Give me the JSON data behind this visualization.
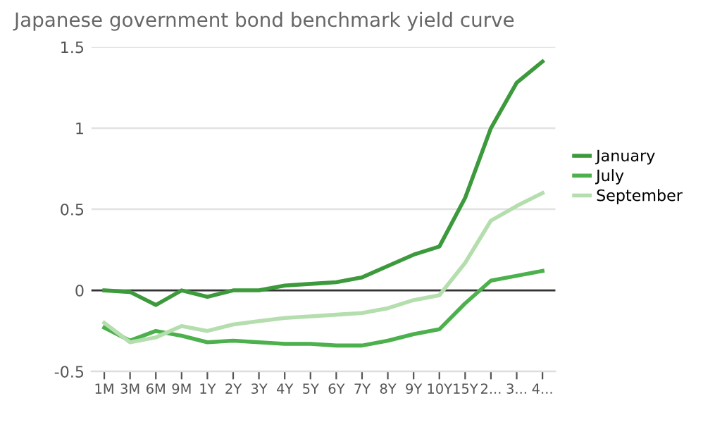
{
  "chart_data": {
    "type": "line",
    "title": "Japanese government bond benchmark yield curve",
    "categories": [
      "1M",
      "3M",
      "6M",
      "9M",
      "1Y",
      "2Y",
      "3Y",
      "4Y",
      "5Y",
      "6Y",
      "7Y",
      "8Y",
      "9Y",
      "10Y",
      "15Y",
      "2...",
      "3...",
      "4..."
    ],
    "series": [
      {
        "name": "January",
        "color": "#3c9a3c",
        "values": [
          0.0,
          -0.01,
          -0.09,
          0.0,
          -0.04,
          0.0,
          0.0,
          0.03,
          0.04,
          0.05,
          0.08,
          0.15,
          0.22,
          0.27,
          0.57,
          1.0,
          1.28,
          1.41
        ]
      },
      {
        "name": "July",
        "color": "#4cb04c",
        "values": [
          -0.23,
          -0.31,
          -0.25,
          -0.28,
          -0.32,
          -0.31,
          -0.32,
          -0.33,
          -0.33,
          -0.34,
          -0.34,
          -0.31,
          -0.27,
          -0.24,
          -0.08,
          0.06,
          0.09,
          0.12
        ]
      },
      {
        "name": "September",
        "color": "#b5deae",
        "values": [
          -0.2,
          -0.32,
          -0.29,
          -0.22,
          -0.25,
          -0.21,
          -0.19,
          -0.17,
          -0.16,
          -0.15,
          -0.14,
          -0.11,
          -0.06,
          -0.03,
          0.17,
          0.43,
          0.52,
          0.6
        ]
      }
    ],
    "ylim": [
      -0.5,
      1.5
    ],
    "yticks": [
      {
        "value": -0.5,
        "label": "-0.5"
      },
      0,
      0.5,
      1,
      1.5
    ],
    "ref_lines": [
      {
        "axis": "y",
        "value": 0,
        "color": "#333333"
      }
    ],
    "grid": "y",
    "legend": "right",
    "marker": "none",
    "line_style": "solid"
  }
}
